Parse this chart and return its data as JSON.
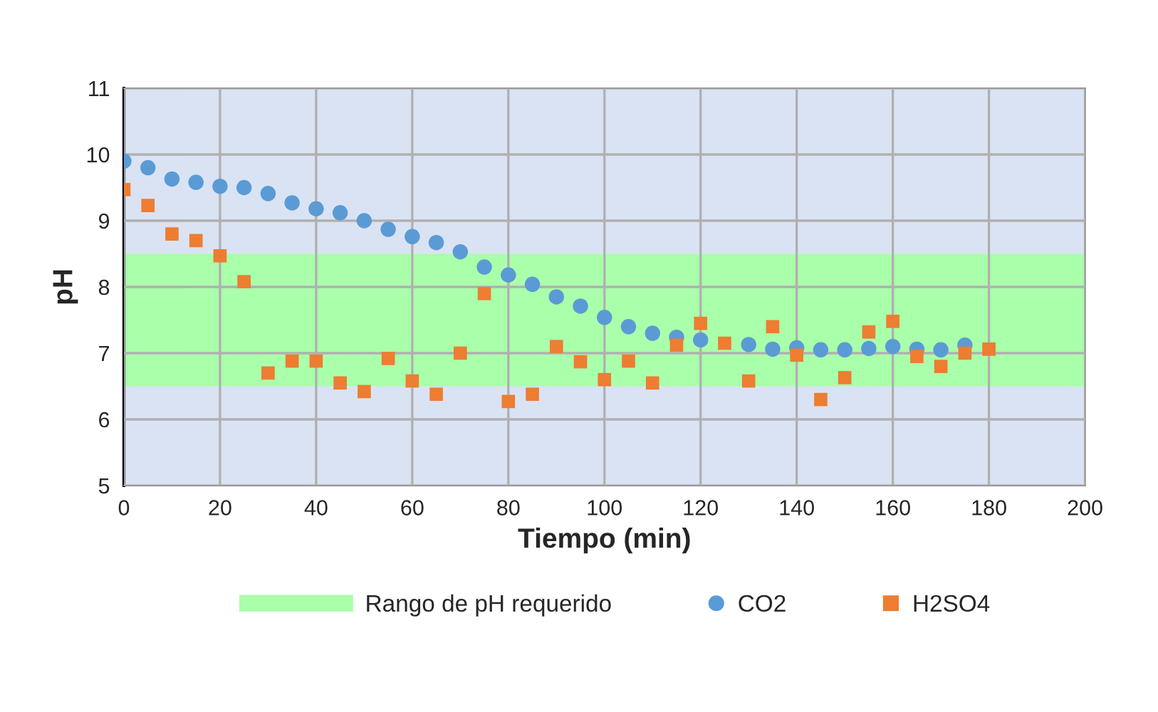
{
  "chart_data": {
    "type": "scatter",
    "xlabel": "Tiempo (min)",
    "ylabel": "pH",
    "xlim": [
      0,
      200
    ],
    "xticks": [
      0,
      20,
      40,
      60,
      80,
      100,
      120,
      140,
      160,
      180,
      200
    ],
    "ylim": [
      5,
      11
    ],
    "yticks": [
      5,
      6,
      7,
      8,
      9,
      10,
      11
    ],
    "grid": true,
    "legend": "bottom",
    "bands": [
      {
        "axis": "y",
        "from": 6.5,
        "to": 8.5,
        "label": "Rango de pH requerido",
        "color": "#aaffaa"
      }
    ],
    "series": [
      {
        "name": "CO2",
        "color": "#5b9bd5",
        "marker": "circle",
        "x": [
          0,
          5,
          10,
          15,
          20,
          25,
          30,
          35,
          40,
          45,
          50,
          55,
          60,
          65,
          70,
          75,
          80,
          85,
          90,
          95,
          100,
          105,
          110,
          115,
          120,
          125,
          130,
          135,
          140,
          145,
          150,
          155,
          160,
          165,
          170,
          175
        ],
        "values": [
          9.9,
          9.8,
          9.63,
          9.58,
          9.52,
          9.5,
          9.41,
          9.27,
          9.18,
          9.12,
          9.0,
          8.87,
          8.76,
          8.67,
          8.53,
          8.3,
          8.18,
          8.04,
          7.85,
          7.71,
          7.54,
          7.4,
          7.3,
          7.24,
          7.2,
          null,
          7.13,
          7.06,
          7.08,
          7.05,
          7.05,
          7.07,
          7.1,
          7.06,
          7.05,
          7.12
        ]
      },
      {
        "name": "H2SO4",
        "color": "#ed7d31",
        "marker": "square",
        "x": [
          0,
          5,
          10,
          15,
          20,
          25,
          30,
          35,
          40,
          45,
          50,
          55,
          60,
          65,
          70,
          75,
          80,
          85,
          90,
          95,
          100,
          105,
          110,
          115,
          120,
          125,
          130,
          135,
          140,
          145,
          150,
          155,
          160,
          165,
          170,
          175,
          180
        ],
        "values": [
          9.47,
          9.23,
          8.8,
          8.7,
          8.47,
          8.08,
          6.7,
          6.88,
          6.88,
          6.55,
          6.42,
          6.92,
          6.58,
          6.38,
          7.0,
          7.9,
          6.27,
          6.38,
          7.1,
          6.87,
          6.6,
          6.88,
          6.55,
          7.12,
          7.45,
          7.15,
          6.58,
          7.4,
          6.97,
          6.3,
          6.63,
          7.32,
          7.48,
          6.95,
          6.8,
          7.0,
          7.06
        ]
      }
    ]
  }
}
